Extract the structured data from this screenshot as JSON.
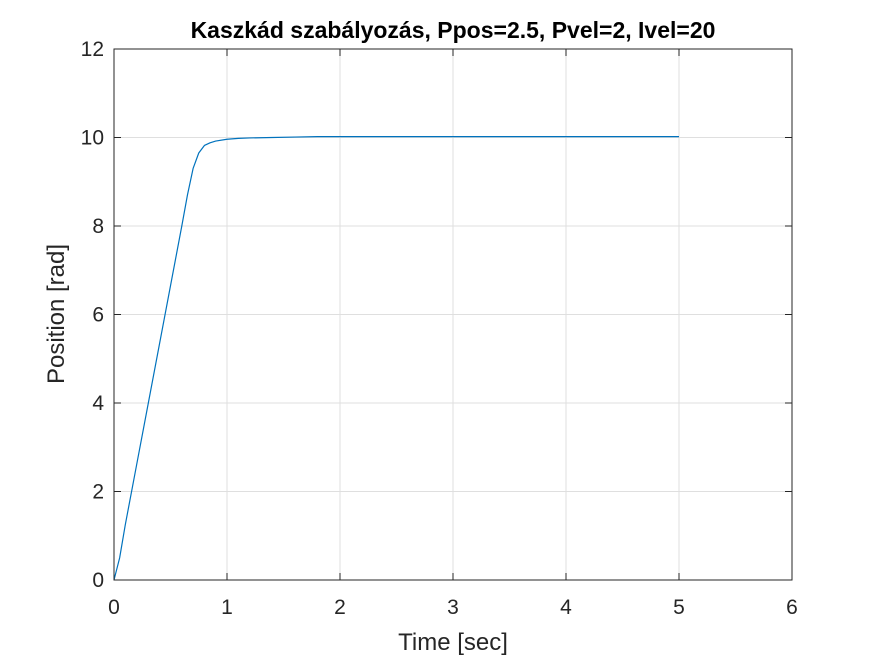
{
  "chart_data": {
    "type": "line",
    "title": "Kaszkád szabályozás, Ppos=2.5, Pvel=2, Ivel=20",
    "xlabel": "Time [sec]",
    "ylabel": "Position [rad]",
    "xlim": [
      0,
      6
    ],
    "ylim": [
      0,
      12
    ],
    "xticks": [
      0,
      1,
      2,
      3,
      4,
      5,
      6
    ],
    "yticks": [
      0,
      2,
      4,
      6,
      8,
      10,
      12
    ],
    "grid": true,
    "legend": "none",
    "series": [
      {
        "color": "#0072BD",
        "x": [
          0,
          0.05,
          0.1,
          0.2,
          0.3,
          0.4,
          0.5,
          0.6,
          0.65,
          0.7,
          0.75,
          0.8,
          0.85,
          0.9,
          1.0,
          1.1,
          1.2,
          1.4,
          1.6,
          1.8,
          2.0,
          2.5,
          3.0,
          3.5,
          4.0,
          4.5,
          5.0
        ],
        "y": [
          0,
          0.5,
          1.25,
          2.6,
          3.95,
          5.3,
          6.65,
          8.0,
          8.7,
          9.3,
          9.65,
          9.82,
          9.88,
          9.92,
          9.96,
          9.98,
          9.99,
          10.0,
          10.01,
          10.02,
          10.02,
          10.02,
          10.02,
          10.02,
          10.02,
          10.02,
          10.02
        ]
      }
    ]
  }
}
